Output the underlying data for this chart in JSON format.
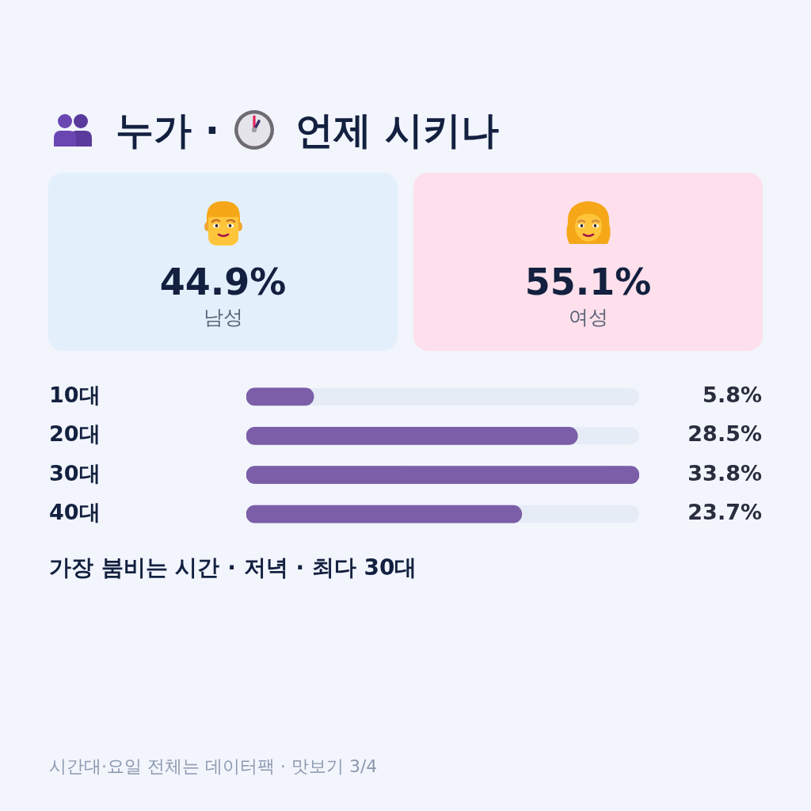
{
  "chart_data": [
    {
      "type": "other",
      "title": "누가 · 언제 시키나",
      "annotations": [
        "44.9%",
        "남성",
        "55.1%",
        "여성"
      ]
    },
    {
      "type": "bar",
      "orientation": "horizontal",
      "categories": [
        "10대",
        "20대",
        "30대",
        "40대"
      ],
      "values": [
        5.8,
        28.5,
        33.8,
        23.7
      ],
      "color": "#7b5ea7",
      "xlim": [
        0,
        33.8
      ],
      "value_labels": [
        "5.8%",
        "28.5%",
        "33.8%",
        "23.7%"
      ],
      "tick_labels": "y",
      "annotations": [
        "가장 붐비는 시간 · 저녁 · 최다 30대",
        "시간대·요일 전체는 데이터팩 · 맛보기 3/4"
      ]
    }
  ]
}
